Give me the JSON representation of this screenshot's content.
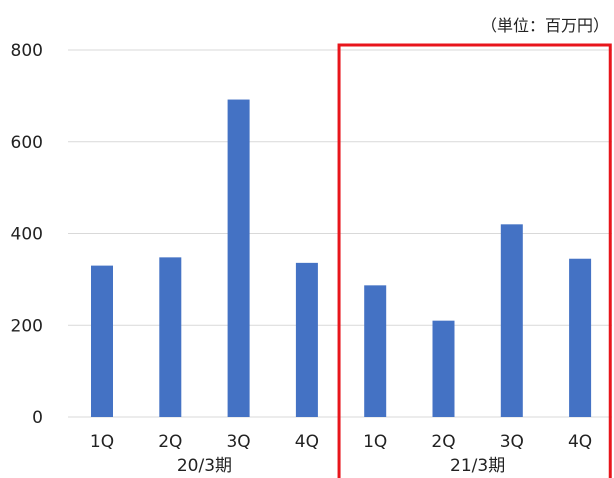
{
  "chart_data": {
    "type": "bar",
    "unit_note": "（単位：百万円）",
    "title": "",
    "xlabel": "",
    "ylabel": "",
    "ylim": [
      0,
      800
    ],
    "yticks": [
      0,
      200,
      400,
      600,
      800
    ],
    "grid": true,
    "categories": [
      "1Q",
      "2Q",
      "3Q",
      "4Q",
      "1Q",
      "2Q",
      "3Q",
      "4Q"
    ],
    "groups": [
      {
        "label": "20/3期",
        "start": 0,
        "end": 3
      },
      {
        "label": "21/3期",
        "start": 4,
        "end": 7
      }
    ],
    "series": [
      {
        "values": [
          330,
          348,
          692,
          336,
          287,
          210,
          420,
          345
        ]
      }
    ],
    "highlight_group": 1,
    "colors": {
      "bar": "#4472C4",
      "grid": "#D9D9D9",
      "highlight": "#E8151B"
    }
  }
}
